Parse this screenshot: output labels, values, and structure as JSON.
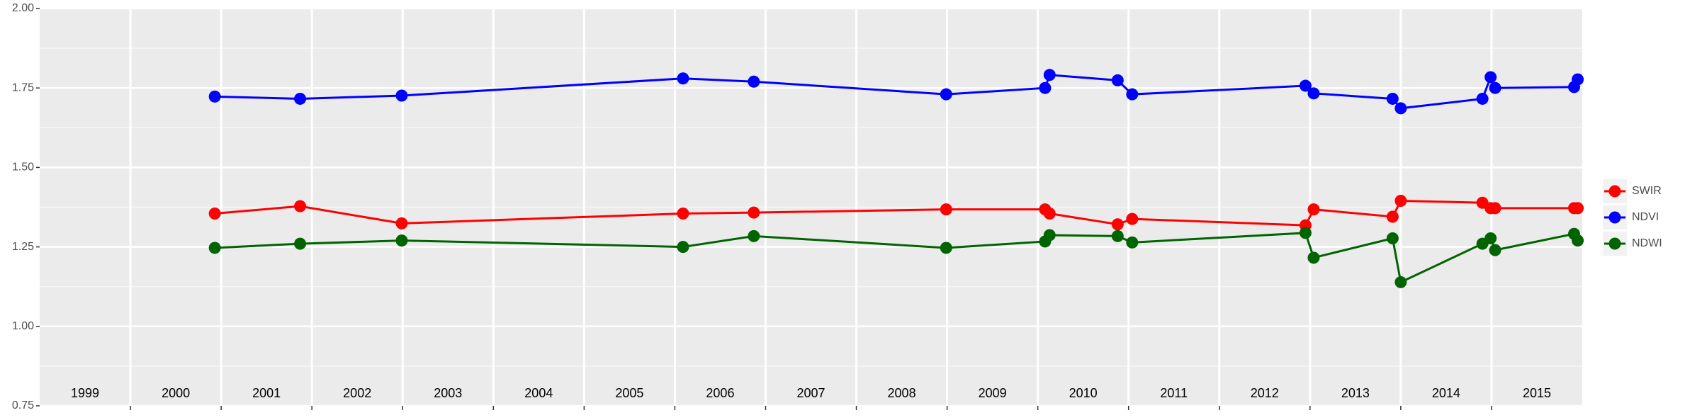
{
  "chart_data": {
    "type": "line",
    "x": [
      2000.93,
      2001.87,
      2002.99,
      2006.09,
      2006.87,
      2008.99,
      2010.08,
      2010.13,
      2010.88,
      2011.04,
      2012.95,
      2013.04,
      2013.91,
      2014.0,
      2014.9,
      2014.99,
      2015.04,
      2015.91,
      2015.95
    ],
    "series": [
      {
        "name": "SWIR",
        "color": "#ff0000",
        "values": [
          1.355,
          1.378,
          1.324,
          1.355,
          1.358,
          1.368,
          1.368,
          1.355,
          1.321,
          1.338,
          1.318,
          1.368,
          1.345,
          1.395,
          1.389,
          1.372,
          1.372,
          1.372,
          1.372
        ]
      },
      {
        "name": "NDVI",
        "color": "#0000ff",
        "values": [
          1.723,
          1.716,
          1.726,
          1.78,
          1.77,
          1.73,
          1.75,
          1.791,
          1.774,
          1.73,
          1.757,
          1.733,
          1.716,
          1.686,
          1.716,
          1.784,
          1.75,
          1.753,
          1.777
        ]
      },
      {
        "name": "NDWI",
        "color": "#006400",
        "values": [
          1.247,
          1.26,
          1.27,
          1.25,
          1.284,
          1.247,
          1.267,
          1.287,
          1.284,
          1.264,
          1.294,
          1.216,
          1.277,
          1.139,
          1.26,
          1.277,
          1.24,
          1.291,
          1.27
        ]
      }
    ],
    "xlim": [
      1999,
      2016
    ],
    "xticks": [
      2000,
      2001,
      2002,
      2003,
      2004,
      2005,
      2006,
      2007,
      2008,
      2009,
      2010,
      2011,
      2012,
      2013,
      2014,
      2015
    ],
    "year_labels": [
      {
        "value": 1999.5,
        "label": "1999"
      },
      {
        "value": 2000.5,
        "label": "2000"
      },
      {
        "value": 2001.5,
        "label": "2001"
      },
      {
        "value": 2002.5,
        "label": "2002"
      },
      {
        "value": 2003.5,
        "label": "2003"
      },
      {
        "value": 2004.5,
        "label": "2004"
      },
      {
        "value": 2005.5,
        "label": "2005"
      },
      {
        "value": 2006.5,
        "label": "2006"
      },
      {
        "value": 2007.5,
        "label": "2007"
      },
      {
        "value": 2008.5,
        "label": "2008"
      },
      {
        "value": 2009.5,
        "label": "2009"
      },
      {
        "value": 2010.5,
        "label": "2010"
      },
      {
        "value": 2011.5,
        "label": "2011"
      },
      {
        "value": 2012.5,
        "label": "2012"
      },
      {
        "value": 2013.5,
        "label": "2013"
      },
      {
        "value": 2014.5,
        "label": "2014"
      },
      {
        "value": 2015.5,
        "label": "2015"
      }
    ],
    "ylim": [
      0.75,
      2.0
    ],
    "yticks": [
      {
        "value": 0.75,
        "label": "0.75"
      },
      {
        "value": 1.0,
        "label": "1.00"
      },
      {
        "value": 1.25,
        "label": "1.25"
      },
      {
        "value": 1.5,
        "label": "1.50"
      },
      {
        "value": 1.75,
        "label": "1.75"
      },
      {
        "value": 2.0,
        "label": "2.00"
      }
    ],
    "grid": true
  }
}
